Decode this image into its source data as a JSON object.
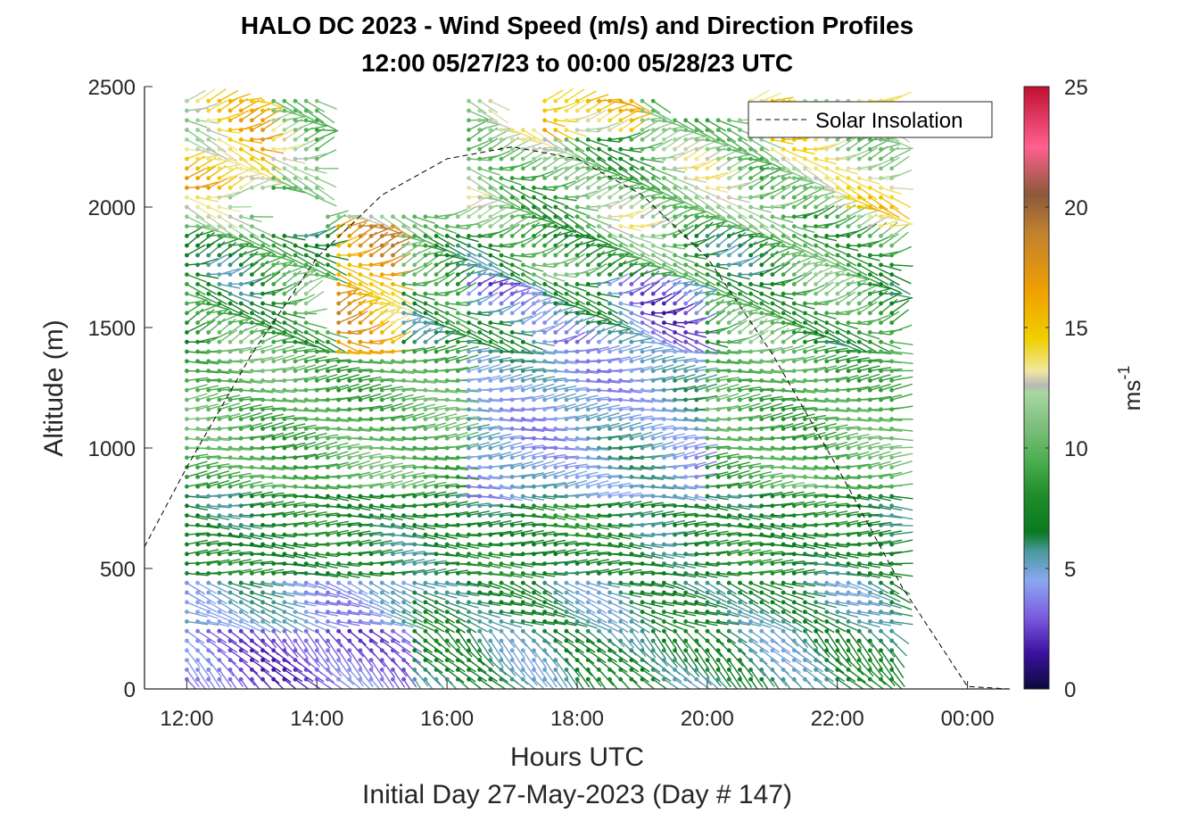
{
  "chart_data": {
    "type": "wind-barb-profile",
    "title_line1": "HALO DC 2023 - Wind Speed (m/s) and Direction Profiles",
    "title_line2": "12:00 05/27/23 to 00:00 05/28/23  UTC",
    "xlabel": "Hours UTC",
    "xlabel2": "Initial Day 27-May-2023 (Day # 147)",
    "ylabel": "Altitude (m)",
    "x_ticks": [
      12,
      14,
      16,
      18,
      20,
      22,
      24
    ],
    "x_tick_labels": [
      "12:00",
      "14:00",
      "16:00",
      "18:00",
      "20:00",
      "22:00",
      "00:00"
    ],
    "xlim": [
      11.35,
      24.65
    ],
    "y_ticks": [
      0,
      500,
      1000,
      1500,
      2000,
      2500
    ],
    "y_tick_labels": [
      "0",
      "500",
      "1000",
      "1500",
      "2000",
      "2500"
    ],
    "ylim": [
      0,
      2500
    ],
    "colorbar": {
      "label_base": "ms",
      "label_exp": "-1",
      "range": [
        0,
        25
      ],
      "ticks": [
        0,
        5,
        10,
        15,
        20,
        25
      ],
      "tick_labels": [
        "0",
        "5",
        "10",
        "15",
        "20",
        "25"
      ],
      "stops": [
        {
          "v": 0,
          "c": "#0a0a3c"
        },
        {
          "v": 1.5,
          "c": "#3d10a0"
        },
        {
          "v": 3,
          "c": "#7b5ce0"
        },
        {
          "v": 4.5,
          "c": "#8aa8f0"
        },
        {
          "v": 5.7,
          "c": "#4a9aa0"
        },
        {
          "v": 6.5,
          "c": "#0a7a20"
        },
        {
          "v": 8,
          "c": "#1e8c28"
        },
        {
          "v": 9.5,
          "c": "#4caf50"
        },
        {
          "v": 11,
          "c": "#80c080"
        },
        {
          "v": 12.3,
          "c": "#a8d8a0"
        },
        {
          "v": 12.6,
          "c": "#b8b8b8"
        },
        {
          "v": 13.2,
          "c": "#f0e8a0"
        },
        {
          "v": 14.5,
          "c": "#f0d000"
        },
        {
          "v": 16.5,
          "c": "#f0a000"
        },
        {
          "v": 19,
          "c": "#c08030"
        },
        {
          "v": 20.5,
          "c": "#8a5a3a"
        },
        {
          "v": 22.5,
          "c": "#ff6090"
        },
        {
          "v": 25,
          "c": "#c01030"
        }
      ]
    },
    "legend": {
      "label": "Solar Insolation",
      "location": "top-right"
    },
    "solar_insolation_curve": {
      "style": "dashed",
      "color": "#000000",
      "points": [
        [
          11.35,
          590
        ],
        [
          12,
          920
        ],
        [
          13,
          1390
        ],
        [
          14,
          1790
        ],
        [
          15,
          2050
        ],
        [
          16,
          2200
        ],
        [
          17,
          2250
        ],
        [
          18,
          2200
        ],
        [
          19,
          2050
        ],
        [
          20,
          1790
        ],
        [
          21,
          1390
        ],
        [
          22,
          920
        ],
        [
          23,
          420
        ],
        [
          24,
          10
        ],
        [
          24.65,
          0
        ]
      ]
    },
    "time_range_h": [
      12.0,
      23.0
    ],
    "time_step_h": 0.1667,
    "altitude_range_m": [
      40,
      2460
    ],
    "altitude_step_m": 40,
    "layers": [
      {
        "z_max": 260,
        "speed": 3.0,
        "dir_deg": 225
      },
      {
        "z_max": 460,
        "speed": 4.8,
        "dir_deg": 250
      },
      {
        "z_max": 800,
        "speed": 7.0,
        "dir_deg": 270
      },
      {
        "z_max": 1400,
        "speed": 9.5,
        "dir_deg": 275
      },
      {
        "z_max": 1900,
        "speed": 8.5,
        "dir_deg": 275
      },
      {
        "z_max": 2500,
        "speed": 10.5,
        "dir_deg": 270
      }
    ],
    "regions": [
      {
        "t": [
          15.5,
          23.0
        ],
        "z": [
          0,
          460
        ],
        "speed": 6.2
      },
      {
        "t": [
          16.3,
          20.0
        ],
        "z": [
          800,
          1700
        ],
        "speed": 4.8
      },
      {
        "t": [
          12.0,
          13.2
        ],
        "z": [
          2050,
          2460
        ],
        "speed": 14.0
      },
      {
        "t": [
          14.3,
          15.3
        ],
        "z": [
          1400,
          1950
        ],
        "speed": 16.0
      },
      {
        "t": [
          21.0,
          23.0
        ],
        "z": [
          2000,
          2460
        ],
        "speed": 13.0
      },
      {
        "t": [
          17.5,
          19.0
        ],
        "z": [
          2300,
          2460
        ],
        "speed": 15.0
      }
    ],
    "data_gaps": [
      {
        "t": [
          14.1,
          16.2
        ],
        "z": [
          2000,
          2500
        ]
      },
      {
        "t": [
          14.0,
          14.3
        ],
        "z": [
          1500,
          1700
        ]
      },
      {
        "t": [
          15.3,
          16.3
        ],
        "z": [
          2280,
          2500
        ]
      },
      {
        "t": [
          16.8,
          17.5
        ],
        "z": [
          2350,
          2500
        ]
      },
      {
        "t": [
          12.8,
          14.0
        ],
        "z": [
          2000,
          2050
        ]
      },
      {
        "t": [
          13.1,
          14.1
        ],
        "z": [
          1900,
          2000
        ]
      },
      {
        "t": [
          19.3,
          20.6
        ],
        "z": [
          2380,
          2500
        ]
      },
      {
        "t": [
          20.8,
          23.0
        ],
        "z": [
          2470,
          2500
        ]
      }
    ]
  }
}
